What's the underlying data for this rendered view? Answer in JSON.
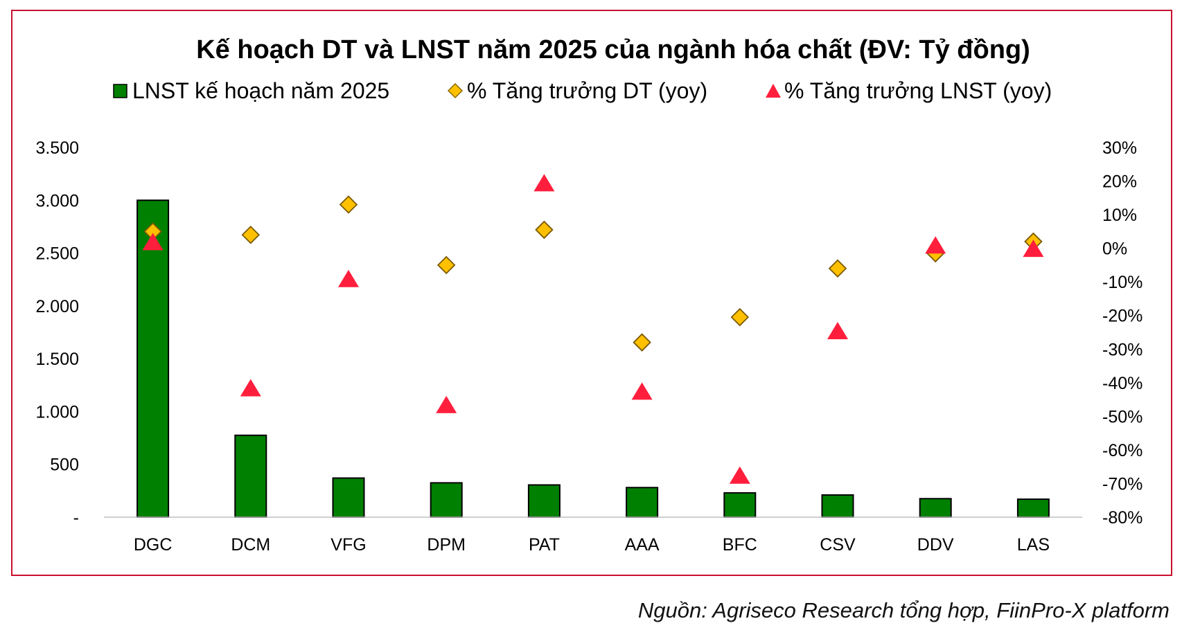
{
  "chart_data": {
    "type": "bar",
    "title": "Kế hoạch DT và LNST năm 2025 của ngành hóa chất (ĐV: Tỷ đồng)",
    "categories": [
      "DGC",
      "DCM",
      "VFG",
      "DPM",
      "PAT",
      "AAA",
      "BFC",
      "CSV",
      "DDV",
      "LAS"
    ],
    "series": [
      {
        "name": "LNST kế hoạch năm 2025",
        "type": "bar",
        "axis": "left",
        "color": "#008000",
        "values": [
          3000,
          775,
          370,
          325,
          305,
          280,
          230,
          210,
          175,
          170
        ]
      },
      {
        "name": "% Tăng trưởng DT (yoy)",
        "type": "scatter",
        "marker": "diamond",
        "axis": "right",
        "color": "#FFC000",
        "values": [
          5,
          4,
          13,
          -5,
          5.5,
          -28,
          -20.5,
          -6,
          -1.5,
          2
        ]
      },
      {
        "name": "% Tăng trưởng LNST (yoy)",
        "type": "scatter",
        "marker": "triangle",
        "axis": "right",
        "color": "#FF1F3D",
        "values": [
          1.5,
          -42,
          -9.5,
          -47,
          19,
          -43,
          -68,
          -25,
          0.5,
          -0.5
        ]
      }
    ],
    "y_left": {
      "ylim": [
        0,
        3500
      ],
      "ticks": [
        "-",
        "500",
        "1.000",
        "1.500",
        "2.000",
        "2.500",
        "3.000",
        "3.500"
      ]
    },
    "y_right": {
      "ylim": [
        -80,
        30
      ],
      "ticks": [
        "-80%",
        "-70%",
        "-60%",
        "-50%",
        "-40%",
        "-30%",
        "-20%",
        "-10%",
        "0%",
        "10%",
        "20%",
        "30%"
      ]
    },
    "grid": false,
    "legend": "top"
  },
  "source": "Nguồn: Agriseco Research tổng hợp, FiinPro-X platform"
}
